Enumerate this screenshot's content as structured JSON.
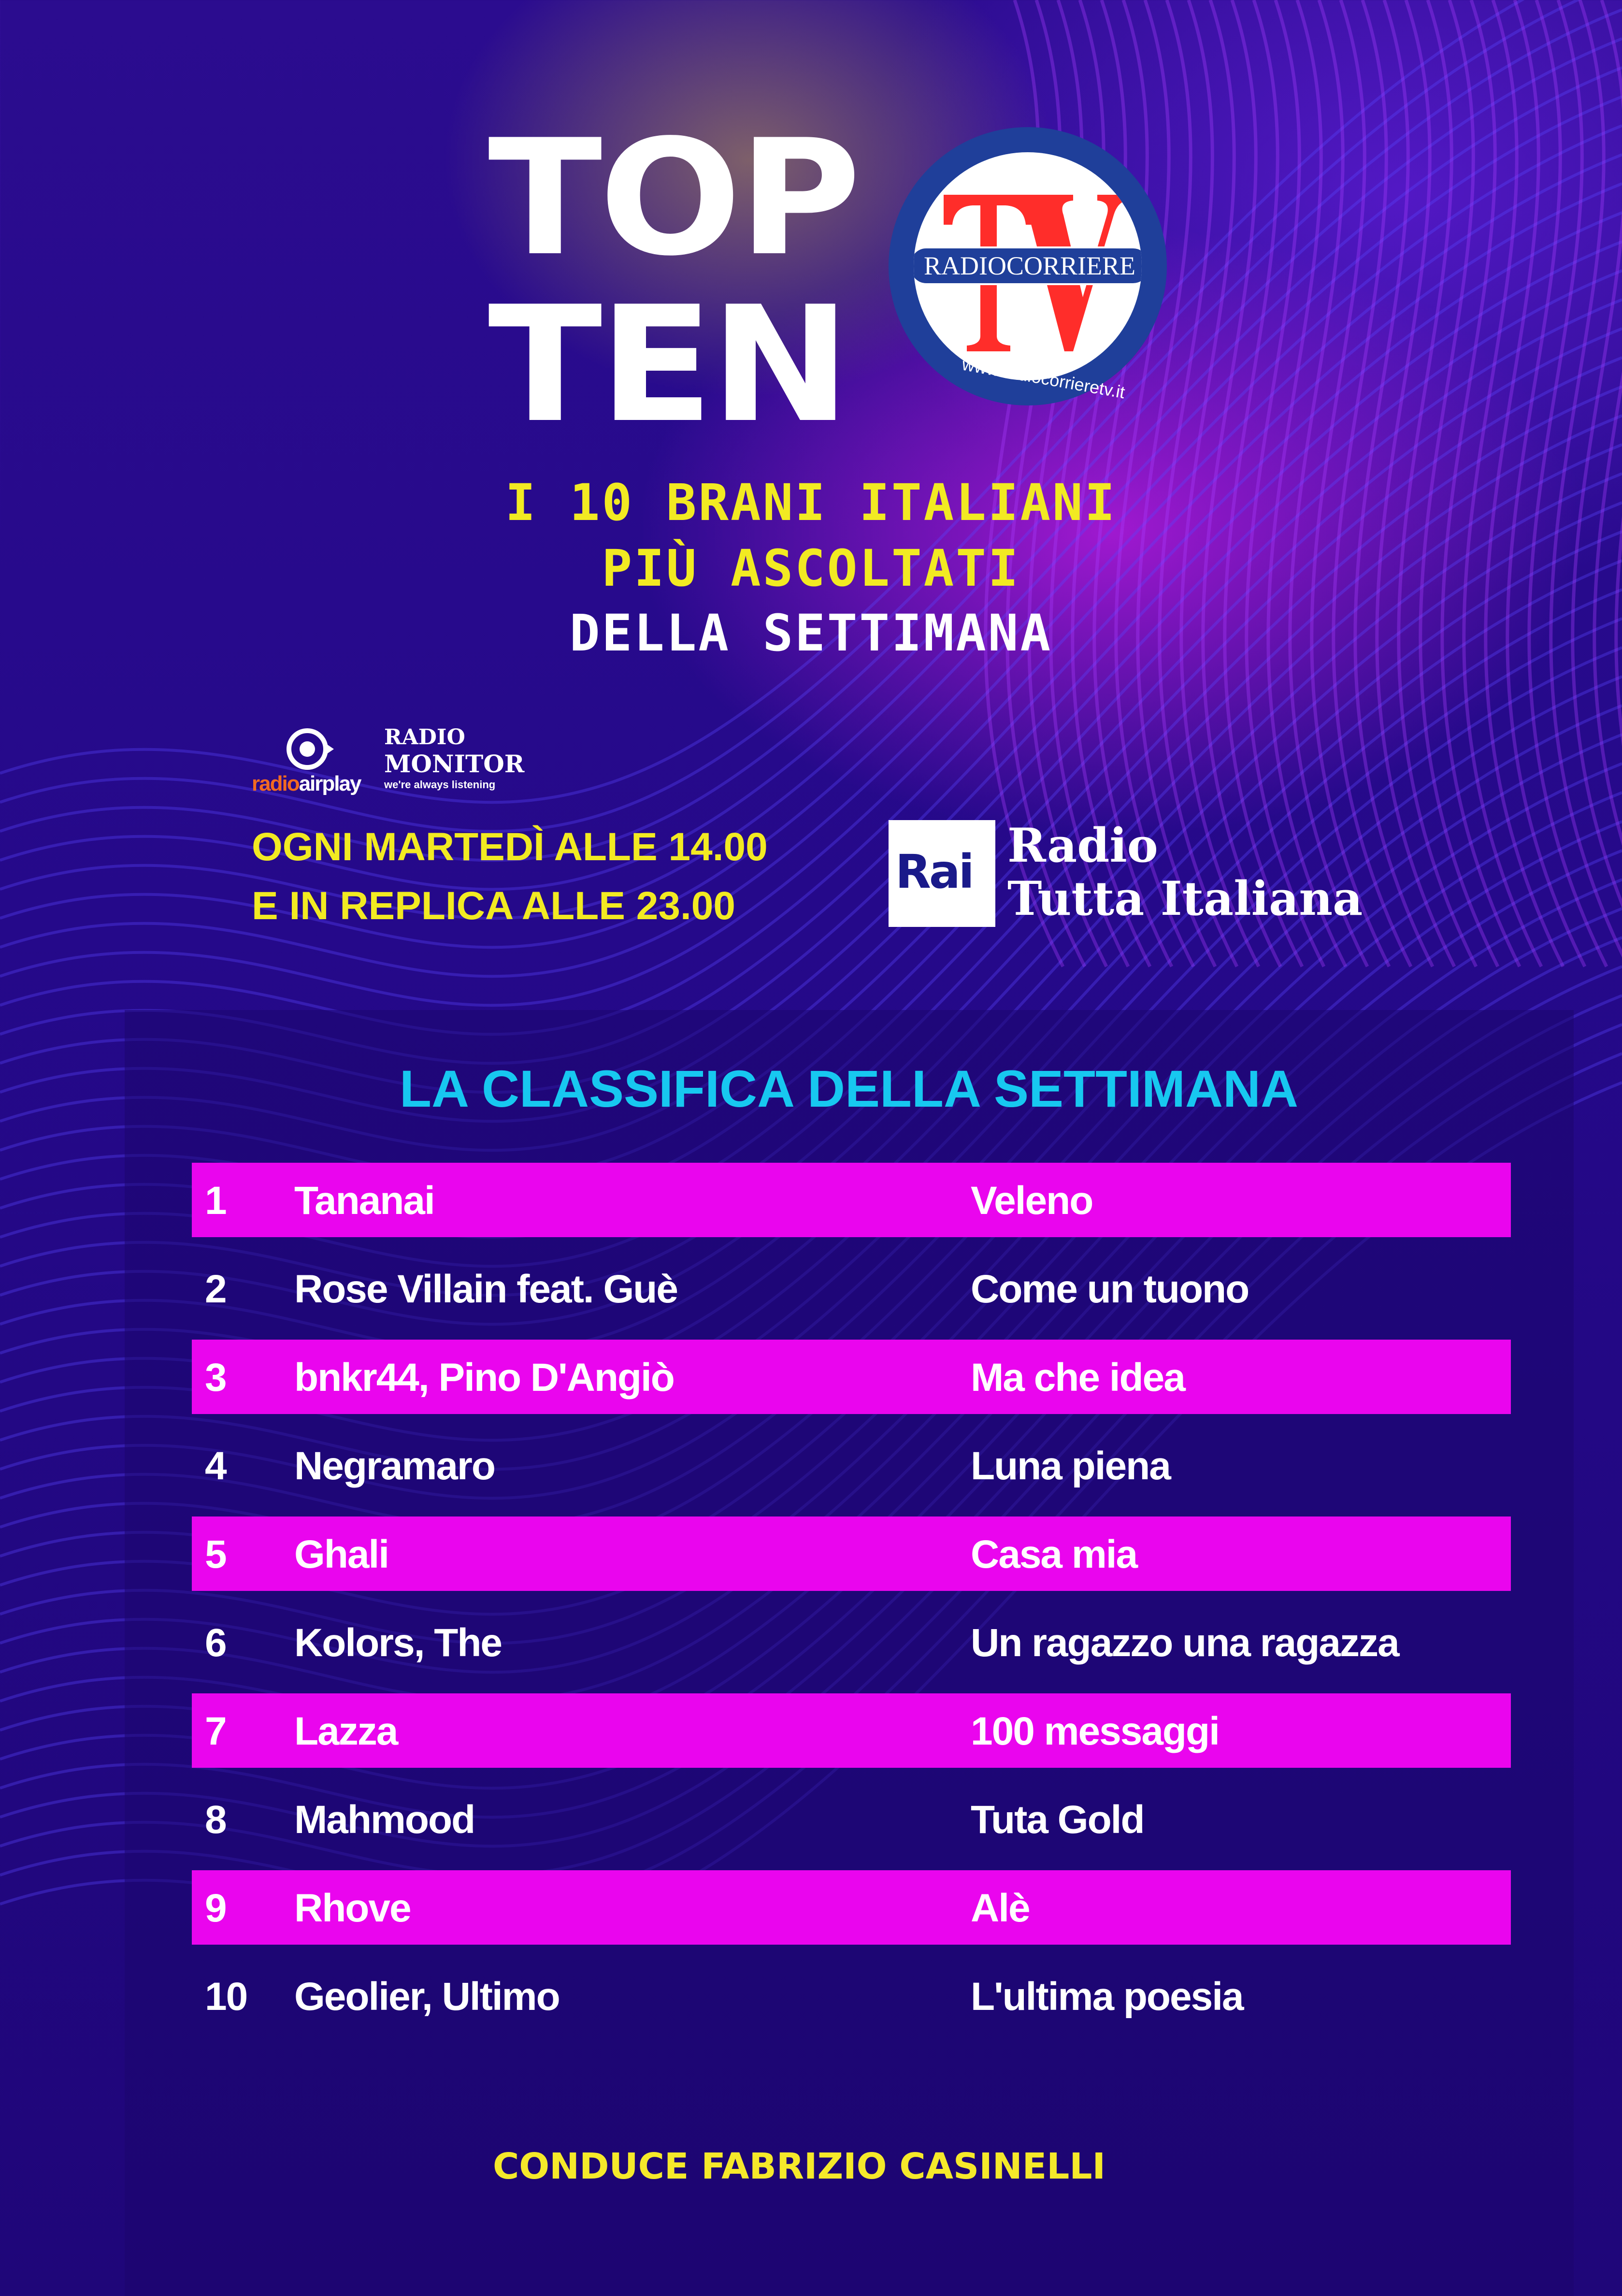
{
  "header": {
    "title_line1": "TOP",
    "title_line2": "TEN",
    "logo": {
      "letters": "TV",
      "band": "RADIOCORRIERE",
      "url": "www.radiocorrieretv.it"
    },
    "subtitle_line1": "I 10 BRANI ITALIANI",
    "subtitle_line2": "PIÙ ASCOLTATI",
    "subtitle_line3": "DELLA SETTIMANA"
  },
  "partners": {
    "airplay_a": "radio",
    "airplay_b": "airplay",
    "monitor_a": "RADIO",
    "monitor_b": "MONITOR",
    "monitor_tagline": "we're always listening"
  },
  "schedule": {
    "line1": "OGNI MARTEDÌ ALLE 14.00",
    "line2": "E IN REPLICA ALLE 23.00"
  },
  "rai": {
    "box": "Rai",
    "line1": "Radio",
    "line2": "Tutta Italiana"
  },
  "chart": {
    "heading": "LA CLASSIFICA DELLA SETTIMANA",
    "rows": [
      {
        "pos": "1",
        "artist": "Tananai",
        "title": "Veleno"
      },
      {
        "pos": "2",
        "artist": "Rose Villain feat. Guè",
        "title": "Come un tuono"
      },
      {
        "pos": "3",
        "artist": "bnkr44, Pino D'Angiò",
        "title": "Ma che idea"
      },
      {
        "pos": "4",
        "artist": "Negramaro",
        "title": "Luna piena"
      },
      {
        "pos": "5",
        "artist": "Ghali",
        "title": "Casa mia"
      },
      {
        "pos": "6",
        "artist": "Kolors, The",
        "title": "Un ragazzo una ragazza"
      },
      {
        "pos": "7",
        "artist": "Lazza",
        "title": "100 messaggi"
      },
      {
        "pos": "8",
        "artist": "Mahmood",
        "title": "Tuta Gold"
      },
      {
        "pos": "9",
        "artist": "Rhove",
        "title": "Alè"
      },
      {
        "pos": "10",
        "artist": "Geolier, Ultimo",
        "title": "L'ultima poesia"
      }
    ]
  },
  "footer": {
    "host": "CONDUCE FABRIZIO CASINELLI"
  },
  "colors": {
    "highlight_row": "#ea05ee",
    "heading": "#17c8f0",
    "accent_yellow": "#f2ea22",
    "background": "#25098a"
  }
}
